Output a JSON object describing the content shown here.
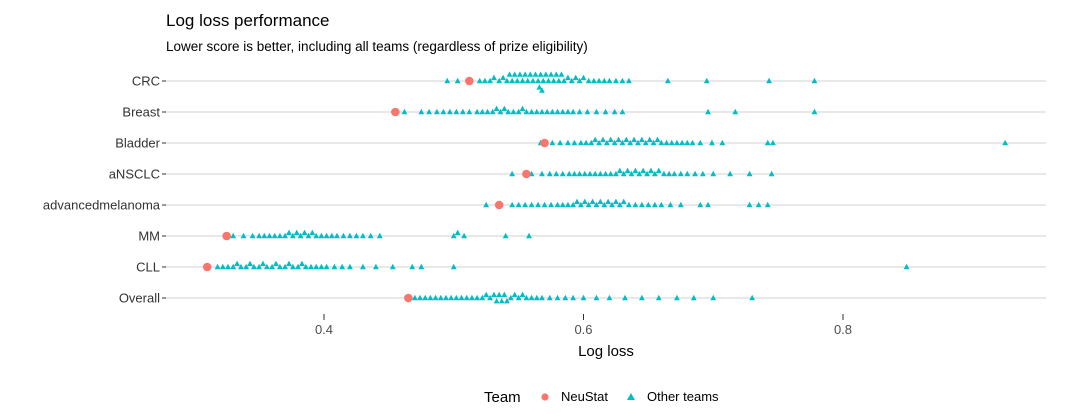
{
  "chart_data": {
    "type": "scatter",
    "title": "Log loss performance",
    "subtitle": "Lower score is better, including all teams (regardless of prize eligibility)",
    "xlabel": "Log loss",
    "ylabel": "",
    "xlim": [
      0.27,
      0.96
    ],
    "xticks": [
      0.4,
      0.6,
      0.8
    ],
    "xtick_labels": [
      "0.4",
      "0.6",
      "0.8"
    ],
    "grid": "horizontal",
    "legend": {
      "title": "Team",
      "position": "bottom",
      "entries": [
        {
          "label": "NeuStat",
          "color": "#F8766D",
          "shape": "circle"
        },
        {
          "label": "Other teams",
          "color": "#00BFC4",
          "shape": "triangle"
        }
      ]
    },
    "categories": [
      "CRC",
      "Breast",
      "Bladder",
      "aNSCLC",
      "advancedmelanoma",
      "MM",
      "CLL",
      "Overall"
    ],
    "series": [
      {
        "name": "NeuStat",
        "points": [
          {
            "category": "CRC",
            "x": 0.512
          },
          {
            "category": "Breast",
            "x": 0.455
          },
          {
            "category": "Bladder",
            "x": 0.57
          },
          {
            "category": "aNSCLC",
            "x": 0.556
          },
          {
            "category": "advancedmelanoma",
            "x": 0.535
          },
          {
            "category": "MM",
            "x": 0.325
          },
          {
            "category": "CLL",
            "x": 0.31
          },
          {
            "category": "Overall",
            "x": 0.465
          }
        ]
      },
      {
        "name": "Other teams",
        "points": [
          {
            "category": "CRC",
            "values": [
              0.495,
              0.503,
              0.52,
              0.524,
              0.528,
              0.531,
              0.535,
              0.538,
              0.541,
              0.543,
              0.545,
              0.547,
              0.549,
              0.551,
              0.553,
              0.555,
              0.557,
              0.559,
              0.561,
              0.563,
              0.565,
              0.566,
              0.567,
              0.568,
              0.569,
              0.571,
              0.573,
              0.575,
              0.577,
              0.579,
              0.581,
              0.583,
              0.585,
              0.588,
              0.591,
              0.594,
              0.597,
              0.6,
              0.604,
              0.608,
              0.612,
              0.616,
              0.62,
              0.625,
              0.63,
              0.635,
              0.665,
              0.695,
              0.743,
              0.778
            ]
          },
          {
            "category": "Breast",
            "values": [
              0.462,
              0.475,
              0.481,
              0.487,
              0.492,
              0.497,
              0.502,
              0.507,
              0.512,
              0.518,
              0.522,
              0.526,
              0.53,
              0.533,
              0.536,
              0.539,
              0.542,
              0.546,
              0.55,
              0.553,
              0.556,
              0.56,
              0.564,
              0.568,
              0.572,
              0.576,
              0.58,
              0.584,
              0.588,
              0.592,
              0.597,
              0.603,
              0.61,
              0.617,
              0.624,
              0.63,
              0.696,
              0.717,
              0.778
            ]
          },
          {
            "category": "Bladder",
            "values": [
              0.567,
              0.576,
              0.582,
              0.588,
              0.593,
              0.598,
              0.602,
              0.606,
              0.609,
              0.612,
              0.615,
              0.618,
              0.621,
              0.624,
              0.627,
              0.63,
              0.633,
              0.636,
              0.639,
              0.642,
              0.645,
              0.648,
              0.651,
              0.654,
              0.657,
              0.66,
              0.664,
              0.668,
              0.672,
              0.676,
              0.68,
              0.684,
              0.69,
              0.699,
              0.707,
              0.742,
              0.746,
              0.925
            ]
          },
          {
            "category": "aNSCLC",
            "values": [
              0.545,
              0.56,
              0.568,
              0.574,
              0.579,
              0.584,
              0.589,
              0.593,
              0.597,
              0.601,
              0.605,
              0.609,
              0.613,
              0.617,
              0.621,
              0.625,
              0.628,
              0.631,
              0.634,
              0.637,
              0.64,
              0.643,
              0.646,
              0.649,
              0.652,
              0.655,
              0.658,
              0.662,
              0.666,
              0.67,
              0.675,
              0.68,
              0.686,
              0.692,
              0.7,
              0.713,
              0.728,
              0.745
            ]
          },
          {
            "category": "advancedmelanoma",
            "values": [
              0.525,
              0.545,
              0.55,
              0.555,
              0.56,
              0.565,
              0.57,
              0.575,
              0.58,
              0.584,
              0.588,
              0.592,
              0.595,
              0.598,
              0.601,
              0.604,
              0.607,
              0.61,
              0.613,
              0.616,
              0.619,
              0.622,
              0.625,
              0.628,
              0.631,
              0.635,
              0.64,
              0.645,
              0.65,
              0.655,
              0.66,
              0.667,
              0.675,
              0.69,
              0.696,
              0.728,
              0.735,
              0.742
            ]
          },
          {
            "category": "MM",
            "values": [
              0.33,
              0.338,
              0.345,
              0.35,
              0.354,
              0.358,
              0.362,
              0.366,
              0.37,
              0.373,
              0.376,
              0.379,
              0.382,
              0.385,
              0.388,
              0.391,
              0.394,
              0.398,
              0.402,
              0.406,
              0.41,
              0.415,
              0.42,
              0.425,
              0.43,
              0.436,
              0.443,
              0.5,
              0.503,
              0.508,
              0.54,
              0.558
            ]
          },
          {
            "category": "CLL",
            "values": [
              0.318,
              0.322,
              0.326,
              0.33,
              0.333,
              0.336,
              0.34,
              0.343,
              0.346,
              0.35,
              0.353,
              0.356,
              0.36,
              0.363,
              0.366,
              0.37,
              0.373,
              0.376,
              0.38,
              0.383,
              0.386,
              0.39,
              0.394,
              0.398,
              0.402,
              0.408,
              0.414,
              0.42,
              0.43,
              0.44,
              0.453,
              0.468,
              0.475,
              0.5,
              0.849
            ]
          },
          {
            "category": "Overall",
            "values": [
              0.47,
              0.474,
              0.478,
              0.482,
              0.486,
              0.49,
              0.494,
              0.498,
              0.502,
              0.506,
              0.51,
              0.514,
              0.518,
              0.522,
              0.525,
              0.528,
              0.531,
              0.533,
              0.535,
              0.537,
              0.539,
              0.541,
              0.544,
              0.547,
              0.55,
              0.553,
              0.556,
              0.56,
              0.564,
              0.568,
              0.574,
              0.58,
              0.586,
              0.592,
              0.6,
              0.61,
              0.62,
              0.632,
              0.645,
              0.658,
              0.672,
              0.685,
              0.7,
              0.73
            ]
          }
        ]
      }
    ]
  }
}
